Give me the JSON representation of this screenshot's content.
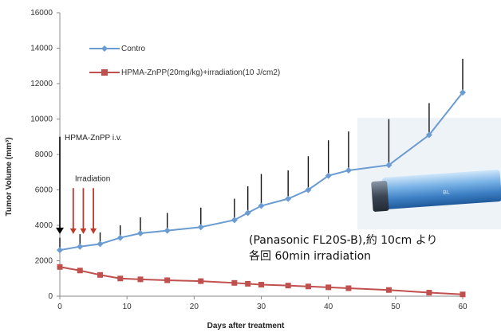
{
  "chart_data": {
    "type": "line",
    "xlabel": "Days after treatment",
    "ylabel": "Tumor Volume (mm³)",
    "xlim": [
      0,
      60
    ],
    "ylim": [
      0,
      16000
    ],
    "xticks": [
      0,
      10,
      20,
      30,
      40,
      50,
      60
    ],
    "yticks": [
      0,
      2000,
      4000,
      6000,
      8000,
      10000,
      12000,
      14000,
      16000
    ],
    "grid": false,
    "legend_position": "top-left",
    "series": [
      {
        "name": "Contro",
        "color": "#6a9bd1",
        "marker": "diamond",
        "x": [
          0,
          3,
          6,
          9,
          12,
          16,
          21,
          26,
          28,
          30,
          34,
          37,
          40,
          43,
          49,
          55,
          60
        ],
        "y": [
          2600,
          2800,
          2950,
          3300,
          3550,
          3700,
          3900,
          4300,
          4700,
          5100,
          5500,
          6000,
          6800,
          7100,
          7400,
          9100,
          11500
        ],
        "error": [
          700,
          700,
          650,
          700,
          900,
          1000,
          1100,
          1200,
          1500,
          1800,
          1600,
          1900,
          2000,
          2200,
          2600,
          1800,
          1900
        ]
      },
      {
        "name": "HPMA-ZnPP(20mg/kg)+irradiation(10 J/cm2)",
        "color": "#c0504d",
        "marker": "square",
        "x": [
          0,
          3,
          6,
          9,
          12,
          16,
          21,
          26,
          28,
          30,
          34,
          37,
          40,
          43,
          49,
          55,
          60
        ],
        "y": [
          1650,
          1450,
          1200,
          1000,
          950,
          900,
          850,
          750,
          700,
          650,
          600,
          550,
          500,
          450,
          350,
          200,
          100
        ],
        "error": []
      }
    ],
    "annotations": [
      {
        "text": "HPMA-ZnPP i.v.",
        "x": 0,
        "y": 9000
      },
      {
        "text": "Irradiation",
        "x": 2,
        "y": 6500
      }
    ],
    "irradiation_days": [
      2,
      3.5,
      5
    ]
  },
  "note": {
    "line1": "(Panasonic FL20S-B),約 10cm より",
    "line2": "各回 60min irradiation"
  },
  "lamp": {
    "label": "BL"
  }
}
